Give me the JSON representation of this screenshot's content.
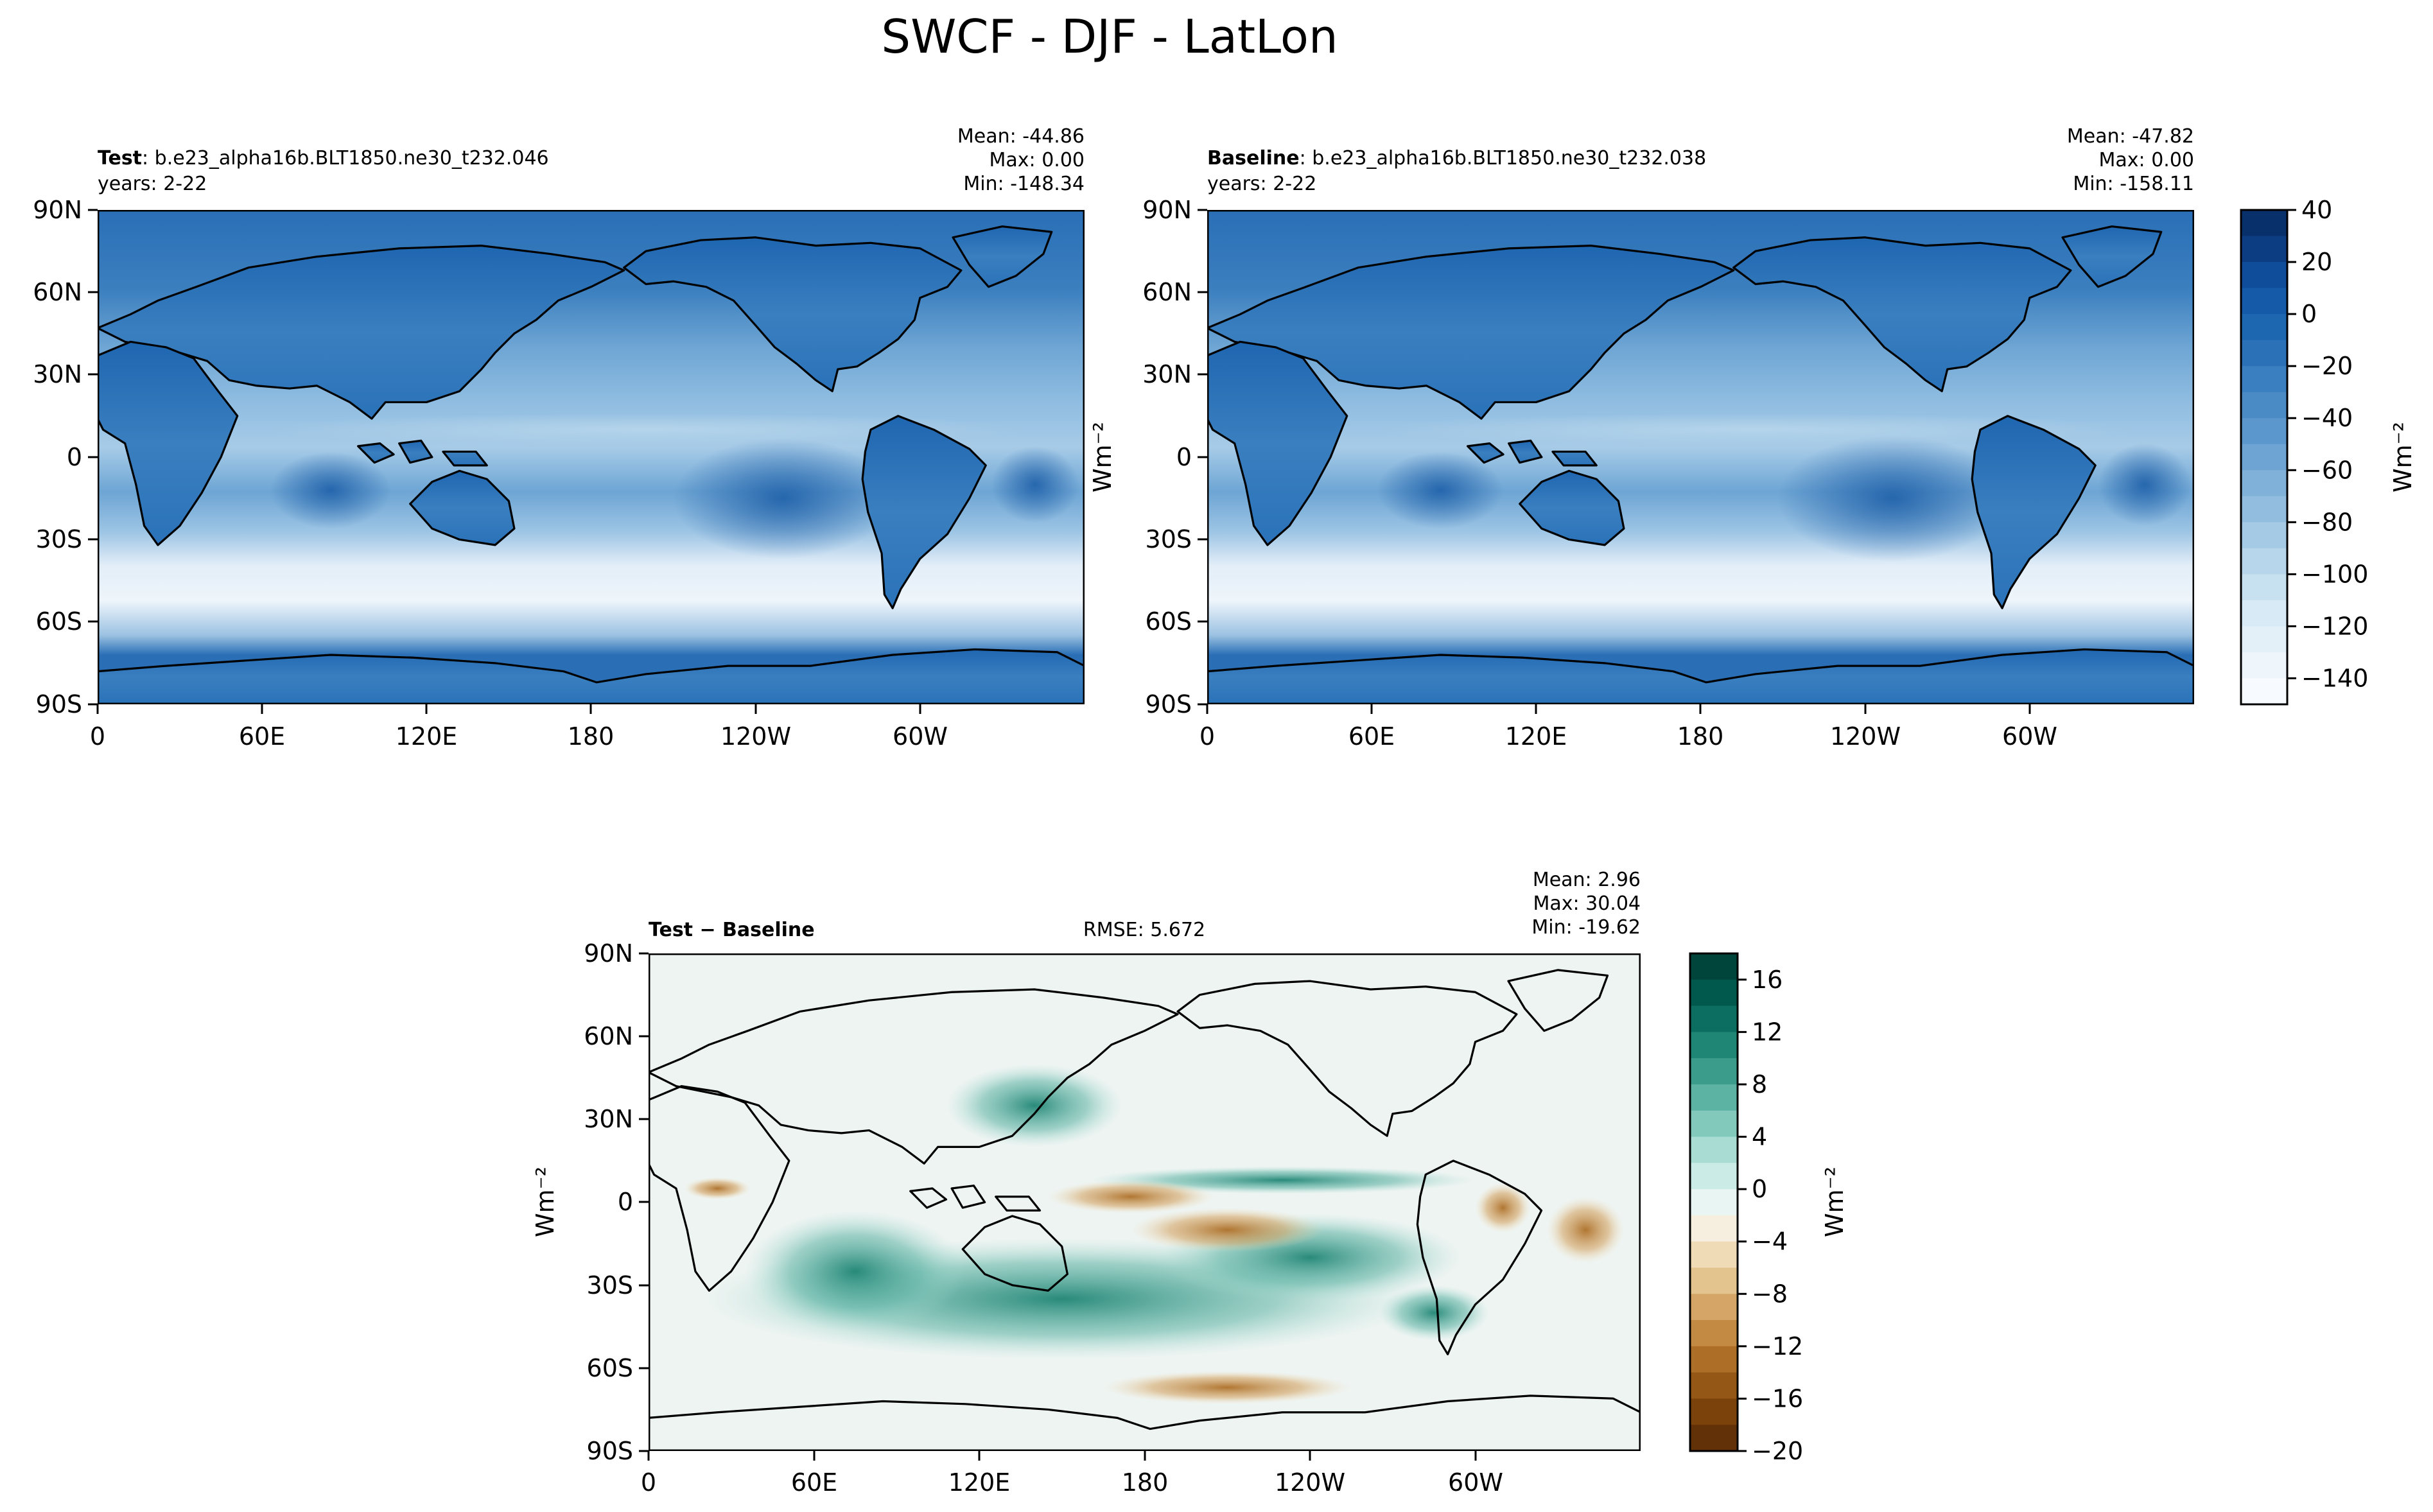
{
  "title": "SWCF - DJF - LatLon",
  "colors": {
    "ocean_blue": "#2a71b8",
    "coast": "#000000",
    "diff_neutral": "#eef4f2"
  },
  "panels": [
    {
      "id": "test",
      "label_bold": "Test",
      "label_rest": ": b.e23_alpha16b.BLT1850.ne30_t232.046",
      "years": "years: 2-22",
      "stats": {
        "mean": "Mean: -44.86",
        "max": "Max:  0.00",
        "min": "Min: -148.34"
      }
    },
    {
      "id": "baseline",
      "label_bold": "Baseline",
      "label_rest": ": b.e23_alpha16b.BLT1850.ne30_t232.038",
      "years": "years: 2-22",
      "stats": {
        "mean": "Mean: -47.82",
        "max": "Max:  0.00",
        "min": "Min: -158.11"
      }
    },
    {
      "id": "diff",
      "label_bold": "Test − Baseline",
      "rmse": "RMSE: 5.672",
      "stats": {
        "mean": "Mean:  2.96",
        "max": "Max: 30.04",
        "min": "Min: -19.62"
      }
    }
  ],
  "chart_data": {
    "type": "heatmap",
    "title": "SWCF - DJF - LatLon",
    "maps": [
      {
        "name": "Test",
        "mean": -44.86,
        "max": 0.0,
        "min": -148.34
      },
      {
        "name": "Baseline",
        "mean": -47.82,
        "max": 0.0,
        "min": -158.11
      },
      {
        "name": "Test - Baseline",
        "mean": 2.96,
        "max": 30.04,
        "min": -19.62,
        "rmse": 5.672
      }
    ],
    "x_ticks": [
      "0",
      "60E",
      "120E",
      "180",
      "120W",
      "60W"
    ],
    "y_ticks": [
      "90N",
      "60N",
      "30N",
      "0",
      "30S",
      "60S",
      "90S"
    ],
    "xlim": [
      0,
      360
    ],
    "ylim": [
      -90,
      90
    ],
    "main_colorbar": {
      "label": "Wm⁻²",
      "ticks": [
        "40",
        "20",
        "0",
        "−20",
        "−40",
        "−60",
        "−80",
        "−100",
        "−120",
        "−140"
      ],
      "range": [
        -150,
        40
      ],
      "levels": [
        40,
        30,
        20,
        10,
        0,
        -10,
        -20,
        -30,
        -40,
        -50,
        -60,
        -70,
        -80,
        -90,
        -100,
        -110,
        -120,
        -130,
        -140,
        -150
      ],
      "colors": [
        "#08306b",
        "#0c3d83",
        "#0f4c99",
        "#155aa9",
        "#1d67b1",
        "#2a71b8",
        "#3a7fbf",
        "#4a8bc6",
        "#5b97cd",
        "#6da4d3",
        "#7fb1d9",
        "#92bddf",
        "#a5cae5",
        "#b7d6eb",
        "#c8e1f0",
        "#d8eaf5",
        "#e4f0f8",
        "#eef5fb",
        "#f7fbff"
      ]
    },
    "diff_colorbar": {
      "label": "Wm⁻²",
      "ticks": [
        "16",
        "12",
        "8",
        "4",
        "0",
        "−4",
        "−8",
        "−12",
        "−16",
        "−20"
      ],
      "range": [
        -20,
        18
      ],
      "levels": [
        18,
        16,
        14,
        12,
        10,
        8,
        6,
        4,
        2,
        0,
        -2,
        -4,
        -6,
        -8,
        -10,
        -12,
        -14,
        -16,
        -18,
        -20
      ],
      "colors": [
        "#00453b",
        "#01594d",
        "#0b6e60",
        "#1f8574",
        "#3c9c8b",
        "#5cb3a4",
        "#82c9bc",
        "#a9ddd3",
        "#cbece6",
        "#e9f5f2",
        "#f6efdf",
        "#efdcb6",
        "#e3c48e",
        "#d4a566",
        "#c38a44",
        "#ad6f27",
        "#955716",
        "#7c420b",
        "#623108"
      ]
    }
  }
}
